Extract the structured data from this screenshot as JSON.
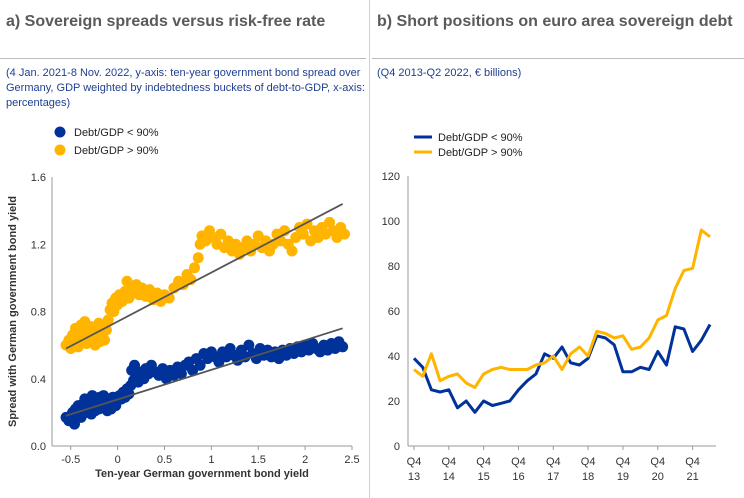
{
  "panel_a": {
    "title": "a) Sovereign spreads versus risk-free rate",
    "subtitle": "(4 Jan. 2021-8 Nov. 2022, y-axis: ten-year government bond spread over Germany, GDP weighted by indebtedness buckets of debt-to-GDP, x-axis: percentages)"
  },
  "panel_b": {
    "title": "b) Short positions on euro area sovereign debt",
    "subtitle": "(Q4 2013-Q2 2022, € billions)"
  },
  "chart_data": [
    {
      "type": "scatter",
      "xlabel": "Ten-year German government bond yield",
      "ylabel": "Spread with German government bond yield",
      "xlim": [
        -0.7,
        2.5
      ],
      "ylim": [
        0,
        1.6
      ],
      "xticks": [
        "-0.5",
        "0",
        "0.5",
        "1",
        "1.5",
        "2",
        "2.5"
      ],
      "yticks": [
        "0.0",
        "0.4",
        "0.8",
        "1.2",
        "1.6"
      ],
      "legend_position": "top-left",
      "series": [
        {
          "name": "Debt/GDP < 90%",
          "color": "#003299",
          "points": [
            [
              -0.55,
              0.17
            ],
            [
              -0.52,
              0.15
            ],
            [
              -0.5,
              0.18
            ],
            [
              -0.48,
              0.2
            ],
            [
              -0.46,
              0.13
            ],
            [
              -0.45,
              0.22
            ],
            [
              -0.43,
              0.19
            ],
            [
              -0.42,
              0.24
            ],
            [
              -0.4,
              0.21
            ],
            [
              -0.39,
              0.17
            ],
            [
              -0.37,
              0.25
            ],
            [
              -0.36,
              0.22
            ],
            [
              -0.35,
              0.28
            ],
            [
              -0.33,
              0.2
            ],
            [
              -0.32,
              0.26
            ],
            [
              -0.3,
              0.23
            ],
            [
              -0.29,
              0.27
            ],
            [
              -0.28,
              0.19
            ],
            [
              -0.27,
              0.3
            ],
            [
              -0.25,
              0.24
            ],
            [
              -0.24,
              0.21
            ],
            [
              -0.23,
              0.28
            ],
            [
              -0.22,
              0.25
            ],
            [
              -0.2,
              0.22
            ],
            [
              -0.19,
              0.29
            ],
            [
              -0.18,
              0.26
            ],
            [
              -0.16,
              0.23
            ],
            [
              -0.15,
              0.3
            ],
            [
              -0.14,
              0.27
            ],
            [
              -0.12,
              0.24
            ],
            [
              -0.11,
              0.21
            ],
            [
              -0.1,
              0.28
            ],
            [
              -0.08,
              0.25
            ],
            [
              -0.07,
              0.22
            ],
            [
              -0.05,
              0.29
            ],
            [
              -0.04,
              0.26
            ],
            [
              -0.02,
              0.24
            ],
            [
              0.0,
              0.27
            ],
            [
              0.02,
              0.3
            ],
            [
              0.04,
              0.28
            ],
            [
              0.06,
              0.32
            ],
            [
              0.08,
              0.29
            ],
            [
              0.1,
              0.34
            ],
            [
              0.12,
              0.31
            ],
            [
              0.14,
              0.36
            ],
            [
              0.15,
              0.45
            ],
            [
              0.17,
              0.39
            ],
            [
              0.18,
              0.48
            ],
            [
              0.2,
              0.42
            ],
            [
              0.22,
              0.38
            ],
            [
              0.25,
              0.44
            ],
            [
              0.28,
              0.4
            ],
            [
              0.3,
              0.46
            ],
            [
              0.33,
              0.43
            ],
            [
              0.36,
              0.48
            ],
            [
              0.4,
              0.44
            ],
            [
              0.44,
              0.42
            ],
            [
              0.48,
              0.46
            ],
            [
              0.52,
              0.4
            ],
            [
              0.56,
              0.45
            ],
            [
              0.6,
              0.42
            ],
            [
              0.64,
              0.47
            ],
            [
              0.68,
              0.43
            ],
            [
              0.72,
              0.48
            ],
            [
              0.76,
              0.5
            ],
            [
              0.8,
              0.45
            ],
            [
              0.84,
              0.52
            ],
            [
              0.88,
              0.48
            ],
            [
              0.92,
              0.55
            ],
            [
              0.96,
              0.52
            ],
            [
              1.0,
              0.56
            ],
            [
              1.04,
              0.53
            ],
            [
              1.08,
              0.5
            ],
            [
              1.12,
              0.56
            ],
            [
              1.16,
              0.53
            ],
            [
              1.2,
              0.58
            ],
            [
              1.24,
              0.54
            ],
            [
              1.28,
              0.51
            ],
            [
              1.32,
              0.57
            ],
            [
              1.36,
              0.53
            ],
            [
              1.4,
              0.6
            ],
            [
              1.44,
              0.55
            ],
            [
              1.48,
              0.52
            ],
            [
              1.52,
              0.58
            ],
            [
              1.56,
              0.54
            ],
            [
              1.6,
              0.57
            ],
            [
              1.64,
              0.53
            ],
            [
              1.68,
              0.56
            ],
            [
              1.72,
              0.52
            ],
            [
              1.76,
              0.57
            ],
            [
              1.8,
              0.54
            ],
            [
              1.84,
              0.58
            ],
            [
              1.88,
              0.55
            ],
            [
              1.92,
              0.59
            ],
            [
              1.96,
              0.56
            ],
            [
              2.0,
              0.6
            ],
            [
              2.04,
              0.57
            ],
            [
              2.08,
              0.61
            ],
            [
              2.12,
              0.58
            ],
            [
              2.16,
              0.56
            ],
            [
              2.2,
              0.6
            ],
            [
              2.24,
              0.57
            ],
            [
              2.28,
              0.61
            ],
            [
              2.32,
              0.58
            ],
            [
              2.36,
              0.62
            ],
            [
              2.4,
              0.59
            ]
          ]
        },
        {
          "name": "Debt/GDP > 90%",
          "color": "#ffb400",
          "points": [
            [
              -0.55,
              0.6
            ],
            [
              -0.52,
              0.63
            ],
            [
              -0.5,
              0.58
            ],
            [
              -0.48,
              0.66
            ],
            [
              -0.46,
              0.62
            ],
            [
              -0.45,
              0.7
            ],
            [
              -0.43,
              0.64
            ],
            [
              -0.42,
              0.59
            ],
            [
              -0.4,
              0.68
            ],
            [
              -0.39,
              0.72
            ],
            [
              -0.37,
              0.63
            ],
            [
              -0.36,
              0.66
            ],
            [
              -0.35,
              0.74
            ],
            [
              -0.33,
              0.61
            ],
            [
              -0.32,
              0.69
            ],
            [
              -0.3,
              0.65
            ],
            [
              -0.29,
              0.62
            ],
            [
              -0.28,
              0.71
            ],
            [
              -0.27,
              0.67
            ],
            [
              -0.25,
              0.64
            ],
            [
              -0.24,
              0.6
            ],
            [
              -0.23,
              0.7
            ],
            [
              -0.22,
              0.66
            ],
            [
              -0.2,
              0.73
            ],
            [
              -0.19,
              0.62
            ],
            [
              -0.18,
              0.68
            ],
            [
              -0.16,
              0.65
            ],
            [
              -0.15,
              0.71
            ],
            [
              -0.14,
              0.63
            ],
            [
              -0.12,
              0.69
            ],
            [
              -0.1,
              0.75
            ],
            [
              -0.08,
              0.81
            ],
            [
              -0.06,
              0.85
            ],
            [
              -0.04,
              0.8
            ],
            [
              -0.02,
              0.88
            ],
            [
              0.0,
              0.84
            ],
            [
              0.02,
              0.9
            ],
            [
              0.05,
              0.86
            ],
            [
              0.08,
              0.92
            ],
            [
              0.1,
              0.98
            ],
            [
              0.12,
              0.88
            ],
            [
              0.15,
              0.95
            ],
            [
              0.18,
              0.91
            ],
            [
              0.2,
              0.96
            ],
            [
              0.23,
              0.9
            ],
            [
              0.26,
              0.94
            ],
            [
              0.3,
              0.89
            ],
            [
              0.34,
              0.93
            ],
            [
              0.38,
              0.87
            ],
            [
              0.42,
              0.91
            ],
            [
              0.46,
              0.86
            ],
            [
              0.5,
              0.9
            ],
            [
              0.55,
              0.88
            ],
            [
              0.6,
              0.94
            ],
            [
              0.65,
              0.98
            ],
            [
              0.7,
              0.96
            ],
            [
              0.74,
              1.02
            ],
            [
              0.78,
              0.99
            ],
            [
              0.82,
              1.06
            ],
            [
              0.86,
              1.12
            ],
            [
              0.88,
              1.2
            ],
            [
              0.9,
              1.25
            ],
            [
              0.94,
              1.22
            ],
            [
              0.98,
              1.28
            ],
            [
              1.02,
              1.24
            ],
            [
              1.06,
              1.2
            ],
            [
              1.1,
              1.26
            ],
            [
              1.14,
              1.18
            ],
            [
              1.18,
              1.22
            ],
            [
              1.22,
              1.16
            ],
            [
              1.26,
              1.2
            ],
            [
              1.3,
              1.14
            ],
            [
              1.34,
              1.18
            ],
            [
              1.38,
              1.22
            ],
            [
              1.42,
              1.16
            ],
            [
              1.46,
              1.2
            ],
            [
              1.5,
              1.25
            ],
            [
              1.54,
              1.18
            ],
            [
              1.58,
              1.22
            ],
            [
              1.62,
              1.16
            ],
            [
              1.66,
              1.2
            ],
            [
              1.7,
              1.26
            ],
            [
              1.74,
              1.22
            ],
            [
              1.78,
              1.28
            ],
            [
              1.82,
              1.2
            ],
            [
              1.86,
              1.16
            ],
            [
              1.9,
              1.24
            ],
            [
              1.94,
              1.3
            ],
            [
              1.98,
              1.26
            ],
            [
              2.02,
              1.32
            ],
            [
              2.06,
              1.22
            ],
            [
              2.1,
              1.28
            ],
            [
              2.14,
              1.24
            ],
            [
              2.18,
              1.3
            ],
            [
              2.22,
              1.26
            ],
            [
              2.26,
              1.33
            ],
            [
              2.3,
              1.28
            ],
            [
              2.34,
              1.24
            ],
            [
              2.38,
              1.3
            ],
            [
              2.42,
              1.26
            ]
          ]
        }
      ],
      "trendlines": [
        {
          "series": "Debt/GDP > 90%",
          "x": [
            -0.55,
            2.4
          ],
          "y": [
            0.58,
            1.44
          ],
          "color": "#555555"
        },
        {
          "series": "Debt/GDP < 90%",
          "x": [
            -0.55,
            2.4
          ],
          "y": [
            0.18,
            0.7
          ],
          "color": "#555555"
        }
      ]
    },
    {
      "type": "line",
      "ylim": [
        0,
        120
      ],
      "yticks": [
        "0",
        "20",
        "40",
        "60",
        "80",
        "100",
        "120"
      ],
      "category_labels": [
        {
          "top": "Q4",
          "bottom": "13"
        },
        {
          "top": "Q4",
          "bottom": "14"
        },
        {
          "top": "Q4",
          "bottom": "15"
        },
        {
          "top": "Q4",
          "bottom": "16"
        },
        {
          "top": "Q4",
          "bottom": "17"
        },
        {
          "top": "Q4",
          "bottom": "18"
        },
        {
          "top": "Q4",
          "bottom": "19"
        },
        {
          "top": "Q4",
          "bottom": "20"
        },
        {
          "top": "Q4",
          "bottom": "21"
        }
      ],
      "label_start_index": 0,
      "label_step": 4,
      "legend_position": "top-left",
      "series": [
        {
          "name": "Debt/GDP < 90%",
          "color": "#003299",
          "values": [
            39,
            35,
            25,
            24,
            25,
            17,
            20,
            15,
            20,
            18,
            19,
            20,
            25,
            29,
            32,
            41,
            39,
            44,
            37,
            36,
            39,
            49,
            48,
            45,
            33,
            33,
            35,
            34,
            42,
            36,
            53,
            52,
            42,
            47,
            54
          ]
        },
        {
          "name": "Debt/GDP > 90%",
          "color": "#ffb400",
          "values": [
            34,
            31,
            41,
            29,
            31,
            32,
            28,
            26,
            32,
            34,
            35,
            34,
            34,
            34,
            36,
            37,
            40,
            34,
            41,
            44,
            40,
            51,
            50,
            48,
            49,
            43,
            44,
            48,
            56,
            58,
            70,
            78,
            79,
            96,
            93
          ]
        }
      ]
    }
  ]
}
